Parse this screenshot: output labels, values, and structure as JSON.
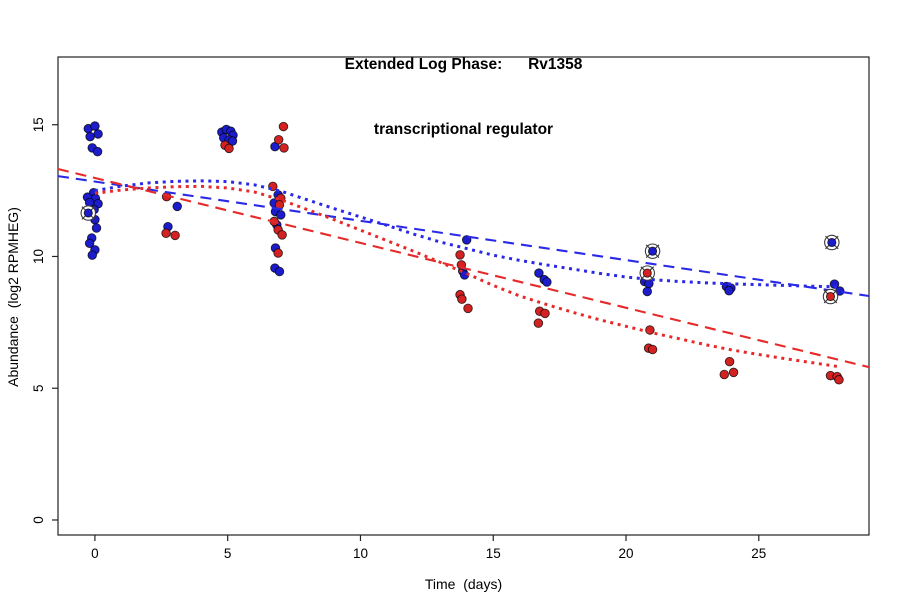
{
  "page": {
    "background": "#ffffff"
  },
  "title": {
    "line1": "Extended Log Phase:      Rv1358",
    "line2": "transcriptional regulator"
  },
  "chart_data": {
    "type": "scatter",
    "title": "Extended Log Phase:      Rv1358",
    "subtitle": "transcriptional regulator",
    "xlabel": "Time  (days)",
    "ylabel": "Abundance  (log2 RPMHEG)",
    "xlim": [
      -1.39,
      29.15
    ],
    "ylim": [
      -0.57,
      17.57
    ],
    "xticks": [
      0,
      5,
      10,
      15,
      20,
      25
    ],
    "yticks": [
      0,
      5,
      10,
      15
    ],
    "grid": false,
    "legend": "none",
    "colors": {
      "blue": "#1c1ccd",
      "red": "#d42222",
      "blue_line": "#2a2ae6",
      "red_line": "#e62a2a",
      "point_stroke": "#000000",
      "flag_ring": "#3a3a3a",
      "axis": "#222222"
    },
    "series": [
      {
        "name": "blue-points",
        "type": "points",
        "color_key": "blue",
        "points": [
          [
            -0.25,
            14.85
          ],
          [
            0.0,
            14.95
          ],
          [
            0.12,
            14.65
          ],
          [
            -0.18,
            14.55
          ],
          [
            -0.1,
            14.12
          ],
          [
            0.1,
            13.98
          ],
          [
            -0.05,
            12.42
          ],
          [
            -0.28,
            12.25
          ],
          [
            0.02,
            12.2
          ],
          [
            -0.2,
            12.05
          ],
          [
            0.12,
            12.0
          ],
          [
            -0.03,
            11.78
          ],
          [
            0.0,
            11.4
          ],
          [
            0.06,
            11.08
          ],
          [
            -0.12,
            10.7
          ],
          [
            -0.2,
            10.5
          ],
          [
            0.0,
            10.25
          ],
          [
            -0.1,
            10.05
          ],
          [
            3.1,
            11.9
          ],
          [
            2.75,
            11.13
          ],
          [
            4.78,
            14.72
          ],
          [
            4.95,
            14.82
          ],
          [
            5.12,
            14.75
          ],
          [
            5.2,
            14.6
          ],
          [
            4.85,
            14.5
          ],
          [
            5.05,
            14.42
          ],
          [
            5.18,
            14.38
          ],
          [
            6.78,
            14.17
          ],
          [
            6.9,
            12.34
          ],
          [
            6.75,
            12.03
          ],
          [
            6.8,
            11.7
          ],
          [
            7.0,
            11.58
          ],
          [
            6.85,
            11.2
          ],
          [
            6.8,
            10.32
          ],
          [
            6.78,
            9.56
          ],
          [
            6.95,
            9.43
          ],
          [
            14.0,
            10.63
          ],
          [
            13.85,
            9.45
          ],
          [
            13.92,
            9.3
          ],
          [
            16.72,
            9.37
          ],
          [
            16.92,
            9.12
          ],
          [
            17.02,
            9.03
          ],
          [
            20.7,
            9.05
          ],
          [
            20.86,
            8.97
          ],
          [
            20.8,
            8.67
          ],
          [
            23.78,
            8.86
          ],
          [
            23.95,
            8.8
          ],
          [
            23.88,
            8.7
          ],
          [
            27.85,
            8.95
          ],
          [
            28.05,
            8.69
          ]
        ]
      },
      {
        "name": "red-points",
        "type": "points",
        "color_key": "red",
        "points": [
          [
            2.7,
            12.27
          ],
          [
            2.68,
            10.88
          ],
          [
            3.02,
            10.8
          ],
          [
            4.9,
            14.22
          ],
          [
            5.05,
            14.1
          ],
          [
            7.1,
            14.93
          ],
          [
            6.92,
            14.43
          ],
          [
            7.12,
            14.12
          ],
          [
            6.7,
            12.66
          ],
          [
            7.0,
            12.21
          ],
          [
            6.95,
            11.96
          ],
          [
            6.75,
            11.33
          ],
          [
            6.9,
            11.01
          ],
          [
            7.05,
            10.82
          ],
          [
            6.9,
            10.13
          ],
          [
            13.75,
            10.06
          ],
          [
            13.8,
            9.68
          ],
          [
            13.75,
            8.55
          ],
          [
            13.82,
            8.38
          ],
          [
            14.05,
            8.03
          ],
          [
            16.75,
            7.92
          ],
          [
            16.95,
            7.84
          ],
          [
            16.7,
            7.47
          ],
          [
            20.9,
            7.21
          ],
          [
            20.85,
            6.52
          ],
          [
            21.0,
            6.47
          ],
          [
            23.9,
            6.01
          ],
          [
            23.7,
            5.52
          ],
          [
            24.05,
            5.6
          ],
          [
            27.7,
            5.48
          ],
          [
            27.95,
            5.44
          ],
          [
            28.02,
            5.32
          ]
        ]
      },
      {
        "name": "blue-linear-fit",
        "type": "line",
        "style": "longdash",
        "color_key": "blue_line",
        "points": [
          [
            -1.39,
            13.05
          ],
          [
            29.15,
            8.5
          ]
        ]
      },
      {
        "name": "red-linear-fit",
        "type": "line",
        "style": "longdash",
        "color_key": "red_line",
        "points": [
          [
            -1.39,
            13.32
          ],
          [
            29.15,
            5.8
          ]
        ]
      },
      {
        "name": "blue-smooth-fit",
        "type": "line",
        "style": "dotted",
        "color_key": "blue_line",
        "points": [
          [
            0,
            12.5
          ],
          [
            1,
            12.67
          ],
          [
            2,
            12.79
          ],
          [
            3,
            12.85
          ],
          [
            4,
            12.87
          ],
          [
            5,
            12.84
          ],
          [
            6,
            12.72
          ],
          [
            7,
            12.48
          ],
          [
            8,
            12.15
          ],
          [
            9,
            11.82
          ],
          [
            10,
            11.5
          ],
          [
            11,
            11.18
          ],
          [
            12,
            10.85
          ],
          [
            13,
            10.55
          ],
          [
            14,
            10.3
          ],
          [
            15,
            10.05
          ],
          [
            16,
            9.85
          ],
          [
            17,
            9.68
          ],
          [
            18,
            9.52
          ],
          [
            19,
            9.36
          ],
          [
            20,
            9.22
          ],
          [
            21,
            9.12
          ],
          [
            22,
            9.05
          ],
          [
            23,
            9.0
          ],
          [
            24,
            8.96
          ],
          [
            25,
            8.93
          ],
          [
            26,
            8.9
          ],
          [
            27,
            8.87
          ],
          [
            28,
            8.85
          ]
        ]
      },
      {
        "name": "red-smooth-fit",
        "type": "line",
        "style": "dotted",
        "color_key": "red_line",
        "points": [
          [
            0,
            12.4
          ],
          [
            1,
            12.52
          ],
          [
            2,
            12.6
          ],
          [
            3,
            12.65
          ],
          [
            4,
            12.66
          ],
          [
            5,
            12.6
          ],
          [
            6,
            12.45
          ],
          [
            7,
            12.15
          ],
          [
            8,
            11.78
          ],
          [
            9,
            11.4
          ],
          [
            10,
            11.0
          ],
          [
            11,
            10.6
          ],
          [
            12,
            10.2
          ],
          [
            13,
            9.78
          ],
          [
            14,
            9.35
          ],
          [
            15,
            8.9
          ],
          [
            16,
            8.5
          ],
          [
            17,
            8.18
          ],
          [
            18,
            7.88
          ],
          [
            19,
            7.6
          ],
          [
            20,
            7.35
          ],
          [
            21,
            7.1
          ],
          [
            22,
            6.88
          ],
          [
            23,
            6.65
          ],
          [
            24,
            6.45
          ],
          [
            25,
            6.28
          ],
          [
            26,
            6.12
          ],
          [
            27,
            5.97
          ],
          [
            28,
            5.82
          ]
        ]
      },
      {
        "name": "blue-flagged-points",
        "type": "circled-points",
        "color_key": "blue",
        "points": [
          [
            -0.25,
            11.65
          ],
          [
            21.0,
            10.2
          ],
          [
            27.75,
            10.53
          ]
        ]
      },
      {
        "name": "red-flagged-points",
        "type": "circled-points",
        "color_key": "red",
        "points": [
          [
            20.8,
            9.37
          ],
          [
            27.7,
            8.48
          ]
        ]
      }
    ]
  }
}
